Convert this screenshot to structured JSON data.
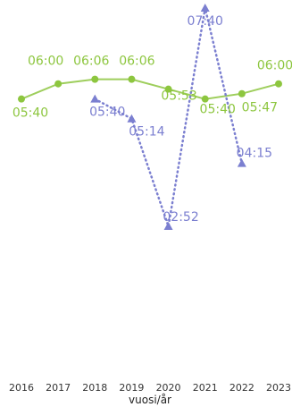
{
  "chart_data": {
    "type": "line",
    "xlabel": "vuosi/år",
    "ylabel": "",
    "x": [
      2016,
      2017,
      2018,
      2019,
      2020,
      2021,
      2022,
      2023
    ],
    "x_tick_labels": [
      "2016",
      "2017",
      "2018",
      "2019",
      "2020",
      "2021",
      "2022",
      "2023"
    ],
    "series": [
      {
        "color": "#8dc63f",
        "marker": "circle",
        "line_style": "solid",
        "values": [
          340,
          360,
          366,
          366,
          353,
          340,
          347,
          360
        ],
        "labels": [
          "05:40",
          "06:00",
          "06:06",
          "06:06",
          "05:53",
          "05:40",
          "05:47",
          "06:00"
        ]
      },
      {
        "color": "#7b7fd0",
        "marker": "triangle",
        "line_style": "dotted",
        "values": [
          null,
          null,
          340,
          314,
          172,
          460,
          255,
          null
        ],
        "labels": [
          null,
          null,
          "05:40",
          "05:14",
          "02:52",
          "07:40",
          "04:15",
          null
        ]
      }
    ],
    "grid": false,
    "legend": "none"
  }
}
